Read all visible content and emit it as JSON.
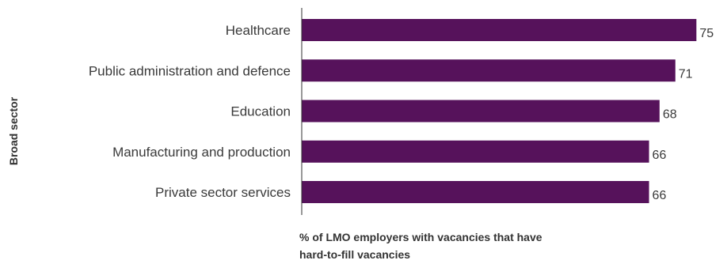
{
  "chart_data": {
    "type": "bar",
    "orientation": "horizontal",
    "categories": [
      "Healthcare",
      "Public administration and defence",
      "Education",
      "Manufacturing and production",
      "Private sector services"
    ],
    "values": [
      75,
      71,
      68,
      66,
      66
    ],
    "ylabel": "Broad sector",
    "xlabel_lines": [
      "% of LMO employers with vacancies that have",
      "hard-to-fill vacancies"
    ],
    "bar_color": "#56125b",
    "xlim": [
      0,
      76
    ],
    "grid": false,
    "legend": "none"
  }
}
